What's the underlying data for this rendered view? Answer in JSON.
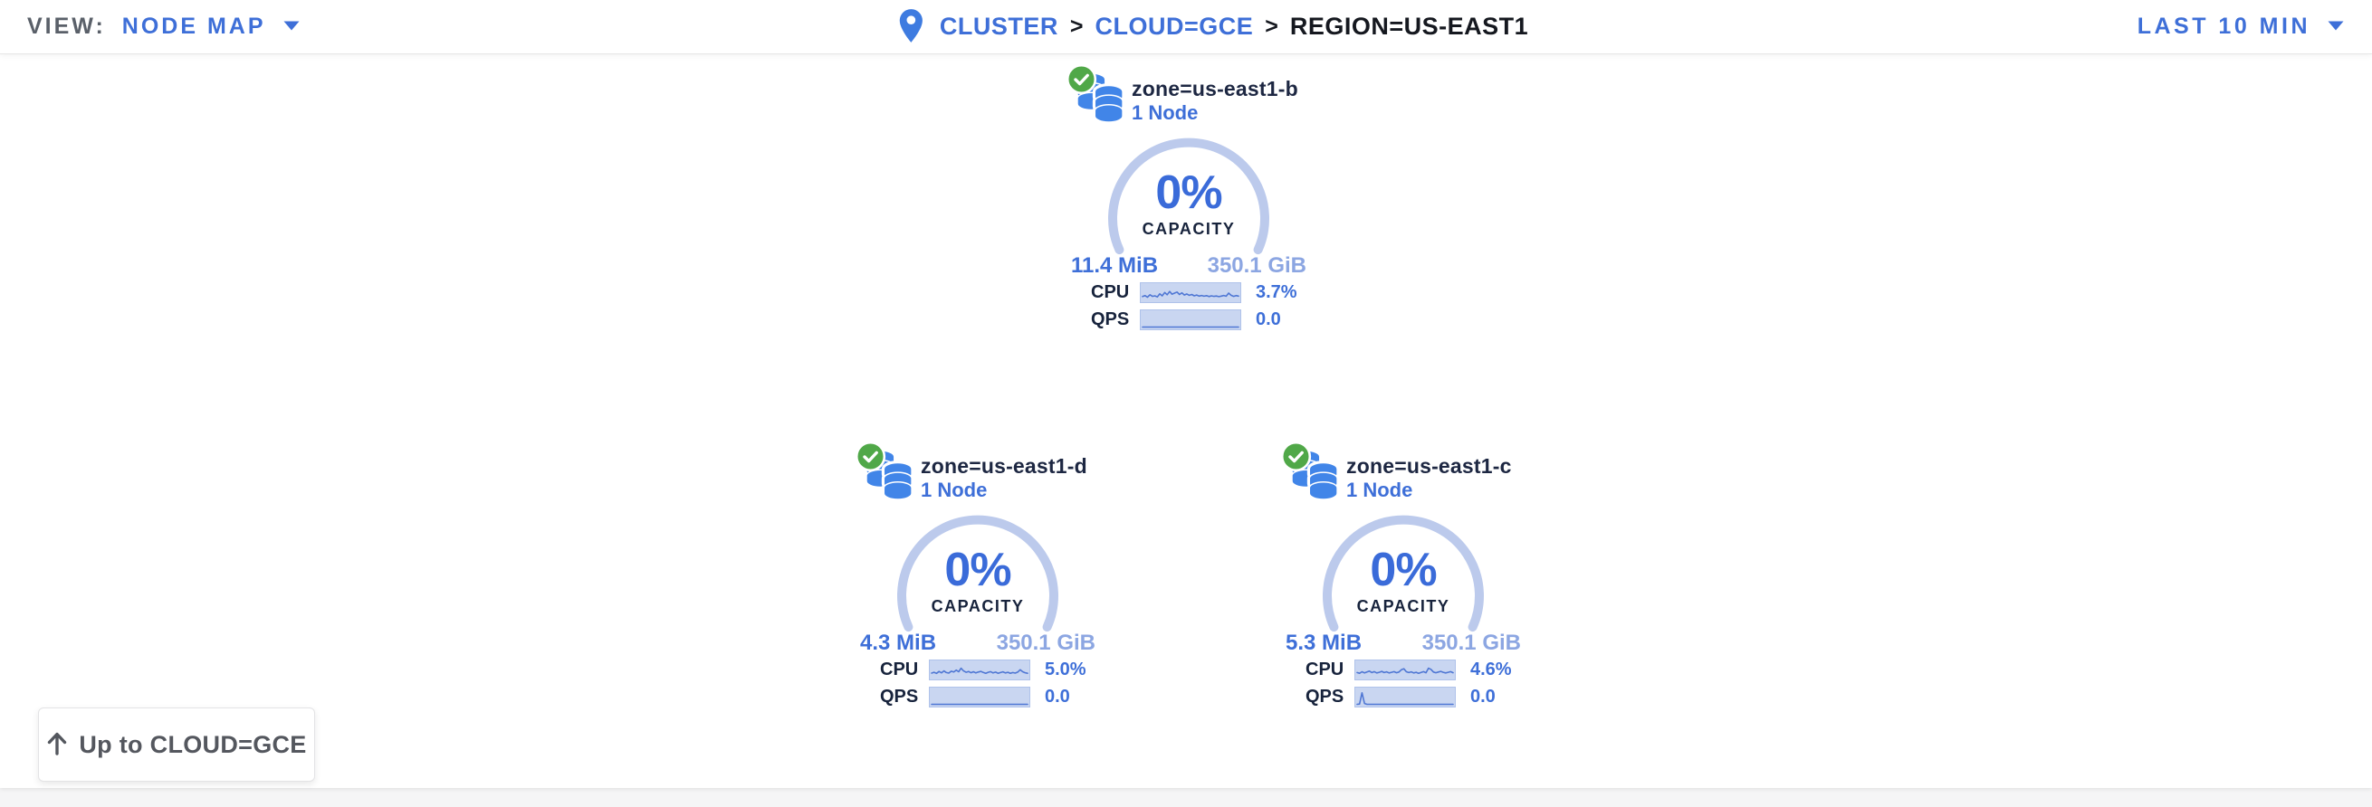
{
  "topbar": {
    "view_label": "VIEW:",
    "view_value": "NODE MAP",
    "time_range": "LAST 10 MIN",
    "breadcrumb": {
      "separator": ">",
      "items": [
        {
          "label": "CLUSTER"
        },
        {
          "label": "CLOUD=GCE"
        },
        {
          "label": "REGION=US-EAST1"
        }
      ]
    }
  },
  "zones": [
    {
      "name": "zone=us-east1-b",
      "node_count": "1 Node",
      "capacity_pct": "0%",
      "capacity_label": "CAPACITY",
      "used": "11.4 MiB",
      "total": "350.1 GiB",
      "cpu_label": "CPU",
      "cpu_value": "3.7%",
      "qps_label": "QPS",
      "qps_value": "0.0",
      "cpu_spark": [
        0.25,
        0.32,
        0.2,
        0.38,
        0.26,
        0.3,
        0.22,
        0.45,
        0.3,
        0.55,
        0.38,
        0.62,
        0.42,
        0.5,
        0.58,
        0.4,
        0.52,
        0.36,
        0.44,
        0.34,
        0.4,
        0.3,
        0.36,
        0.28,
        0.33,
        0.27,
        0.31,
        0.25,
        0.3,
        0.26,
        0.29,
        0.24,
        0.28,
        0.33,
        0.27,
        0.5,
        0.34,
        0.26,
        0.32,
        0.28
      ],
      "qps_spark": [
        0,
        0,
        0,
        0,
        0,
        0,
        0,
        0,
        0,
        0,
        0,
        0,
        0,
        0,
        0,
        0,
        0,
        0,
        0,
        0,
        0,
        0,
        0,
        0,
        0,
        0,
        0,
        0,
        0,
        0,
        0,
        0,
        0,
        0,
        0,
        0,
        0,
        0,
        0,
        0
      ]
    },
    {
      "name": "zone=us-east1-d",
      "node_count": "1 Node",
      "capacity_pct": "0%",
      "capacity_label": "CAPACITY",
      "used": "4.3 MiB",
      "total": "350.1 GiB",
      "cpu_label": "CPU",
      "cpu_value": "5.0%",
      "qps_label": "QPS",
      "qps_value": "0.0",
      "cpu_spark": [
        0.3,
        0.36,
        0.28,
        0.42,
        0.32,
        0.46,
        0.34,
        0.3,
        0.44,
        0.38,
        0.52,
        0.4,
        0.66,
        0.46,
        0.36,
        0.42,
        0.33,
        0.4,
        0.31,
        0.38,
        0.43,
        0.35,
        0.29,
        0.36,
        0.41,
        0.31,
        0.37,
        0.29,
        0.34,
        0.39,
        0.31,
        0.36,
        0.29,
        0.34,
        0.3,
        0.37,
        0.55,
        0.4,
        0.33,
        0.29
      ],
      "qps_spark": [
        0,
        0,
        0,
        0,
        0,
        0,
        0,
        0,
        0,
        0,
        0,
        0,
        0,
        0,
        0,
        0,
        0,
        0,
        0,
        0,
        0,
        0,
        0,
        0,
        0,
        0,
        0,
        0,
        0,
        0,
        0,
        0,
        0,
        0,
        0,
        0,
        0,
        0,
        0,
        0
      ]
    },
    {
      "name": "zone=us-east1-c",
      "node_count": "1 Node",
      "capacity_pct": "0%",
      "capacity_label": "CAPACITY",
      "used": "5.3 MiB",
      "total": "350.1 GiB",
      "cpu_label": "CPU",
      "cpu_value": "4.6%",
      "qps_label": "QPS",
      "qps_value": "0.0",
      "cpu_spark": [
        0.34,
        0.29,
        0.4,
        0.31,
        0.38,
        0.45,
        0.34,
        0.41,
        0.31,
        0.36,
        0.43,
        0.34,
        0.39,
        0.31,
        0.36,
        0.41,
        0.33,
        0.38,
        0.55,
        0.62,
        0.4,
        0.34,
        0.39,
        0.31,
        0.36,
        0.29,
        0.35,
        0.41,
        0.33,
        0.66,
        0.58,
        0.38,
        0.33,
        0.38,
        0.43,
        0.36,
        0.31,
        0.36,
        0.41,
        0.33
      ],
      "qps_spark": [
        0,
        0.02,
        0.85,
        0.06,
        0,
        0,
        0,
        0,
        0,
        0,
        0,
        0,
        0,
        0,
        0,
        0,
        0,
        0,
        0,
        0,
        0,
        0,
        0,
        0,
        0,
        0,
        0,
        0,
        0,
        0,
        0,
        0,
        0,
        0,
        0,
        0,
        0,
        0,
        0,
        0
      ]
    }
  ],
  "back_button": {
    "label": "Up to CLOUD=GCE"
  },
  "colors": {
    "accent_blue": "#3e6fd8",
    "capacity_pct_blue": "#3a6bd9",
    "light_value_blue": "#8ca6e2",
    "gauge_arc": "#bccaec",
    "dark_text": "#17233c",
    "gray_label": "#5a6069",
    "sparkline_bg": "#c9d6f1",
    "sparkline_line": "#4f77d4",
    "healthy_green": "#50a848",
    "db_icon_blue": "#4185e8"
  }
}
